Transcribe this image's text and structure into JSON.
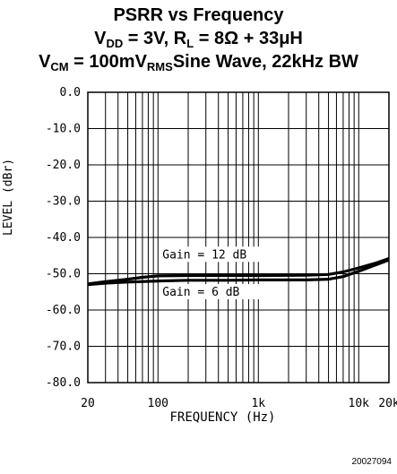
{
  "chart_data": {
    "type": "line",
    "title_line1": "PSRR vs Frequency",
    "title_line2": {
      "v": "V",
      "vsub": "DD",
      "v_eq": " = 3V, ",
      "r": "R",
      "rsub": "L",
      "r_eq": " = 8Ω + 33μH"
    },
    "title_line3": {
      "v": "V",
      "vsub": "CM",
      "v_eq": " = 100mV",
      "unit_sub": "RMS",
      "rest": "Sine Wave, 22kHz BW"
    },
    "xlabel": "FREQUENCY (Hz)",
    "ylabel": "LEVEL (dBr)",
    "x_scale": "log",
    "xlim": [
      20,
      20000
    ],
    "ylim": [
      -80,
      0
    ],
    "y_ticks": [
      0,
      -10,
      -20,
      -30,
      -40,
      -50,
      -60,
      -70,
      -80
    ],
    "y_tick_labels": [
      "0.0",
      "-10.0",
      "-20.0",
      "-30.0",
      "-40.0",
      "-50.0",
      "-60.0",
      "-70.0",
      "-80.0"
    ],
    "x_ticks": [
      20,
      100,
      1000,
      10000,
      20000
    ],
    "x_tick_labels": [
      "20",
      "100",
      "1k",
      "10k",
      "20k"
    ],
    "grid": true,
    "series": [
      {
        "name": "Gain = 12 dB",
        "points": [
          [
            20,
            -52.8
          ],
          [
            30,
            -52.2
          ],
          [
            50,
            -51.5
          ],
          [
            70,
            -51.0
          ],
          [
            100,
            -50.6
          ],
          [
            200,
            -50.5
          ],
          [
            500,
            -50.5
          ],
          [
            1000,
            -50.5
          ],
          [
            3000,
            -50.4
          ],
          [
            5000,
            -50.2
          ],
          [
            7000,
            -49.5
          ],
          [
            10000,
            -48.4
          ],
          [
            15000,
            -47.0
          ],
          [
            20000,
            -45.8
          ]
        ]
      },
      {
        "name": "Gain = 6 dB",
        "points": [
          [
            20,
            -53.0
          ],
          [
            30,
            -52.6
          ],
          [
            50,
            -52.3
          ],
          [
            100,
            -52.0
          ],
          [
            200,
            -51.8
          ],
          [
            500,
            -51.8
          ],
          [
            1000,
            -51.7
          ],
          [
            3000,
            -51.7
          ],
          [
            5000,
            -51.5
          ],
          [
            7000,
            -50.8
          ],
          [
            10000,
            -49.3
          ],
          [
            15000,
            -47.5
          ],
          [
            20000,
            -46.2
          ]
        ]
      }
    ],
    "annotations": [
      "Gain = 12 dB",
      "Gain = 6 dB"
    ],
    "figure_code": "20027094"
  }
}
